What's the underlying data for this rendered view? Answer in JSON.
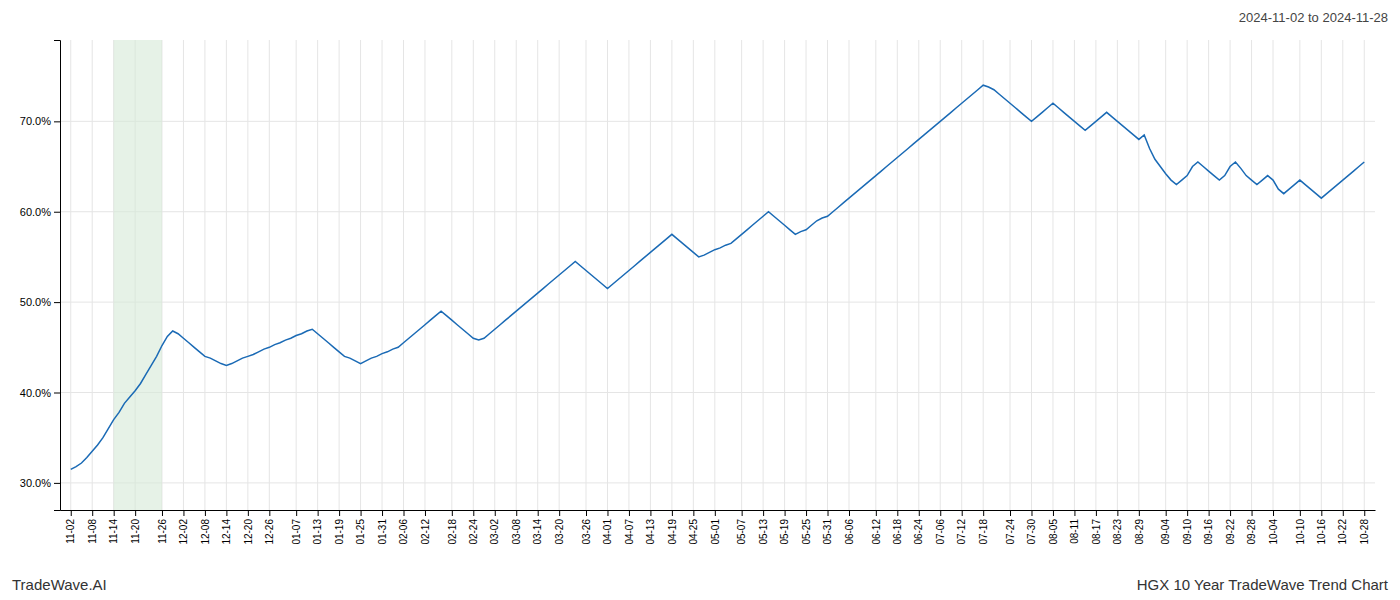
{
  "chart_data": {
    "type": "line",
    "title": "HGX 10 Year TradeWave Trend Chart",
    "subtitle": "2024-11-02 to 2024-11-28",
    "annotations": [
      "TradeWave.AI"
    ],
    "color": "#1a6ab5",
    "grid": true,
    "ylim": [
      27.0,
      79.0
    ],
    "yticks": [
      {
        "value": 30.0,
        "label": "30.0%"
      },
      {
        "value": 40.0,
        "label": "40.0%"
      },
      {
        "value": 50.0,
        "label": "50.0%"
      },
      {
        "value": 60.0,
        "label": "60.0%"
      },
      {
        "value": 70.0,
        "label": "70.0%"
      }
    ],
    "shade": {
      "start": "11-14",
      "end": "11-26",
      "color": "#d6ead7"
    },
    "categories": [
      "11-02",
      null,
      null,
      null,
      "11-08",
      null,
      null,
      null,
      "11-14",
      null,
      null,
      null,
      "11-20",
      null,
      null,
      null,
      null,
      "11-26",
      null,
      null,
      null,
      "12-02",
      null,
      null,
      null,
      "12-08",
      null,
      null,
      null,
      "12-14",
      null,
      null,
      null,
      "12-20",
      null,
      null,
      null,
      "12-26",
      null,
      null,
      null,
      null,
      "01-07",
      null,
      null,
      null,
      "01-13",
      null,
      null,
      null,
      "01-19",
      null,
      null,
      null,
      "01-25",
      null,
      null,
      null,
      "01-31",
      null,
      null,
      null,
      "02-06",
      null,
      null,
      null,
      "02-12",
      null,
      null,
      null,
      null,
      "02-18",
      null,
      null,
      null,
      "02-24",
      null,
      null,
      null,
      "03-02",
      null,
      null,
      null,
      "03-08",
      null,
      null,
      null,
      "03-14",
      null,
      null,
      null,
      "03-20",
      null,
      null,
      null,
      null,
      "03-26",
      null,
      null,
      null,
      "04-01",
      null,
      null,
      null,
      "04-07",
      null,
      null,
      null,
      "04-13",
      null,
      null,
      null,
      "04-19",
      null,
      null,
      null,
      "04-25",
      null,
      null,
      null,
      "05-01",
      null,
      null,
      null,
      null,
      "05-07",
      null,
      null,
      null,
      "05-13",
      null,
      null,
      null,
      "05-19",
      null,
      null,
      null,
      "05-25",
      null,
      null,
      null,
      "05-31",
      null,
      null,
      null,
      "06-06",
      null,
      null,
      null,
      null,
      "06-12",
      null,
      null,
      null,
      "06-18",
      null,
      null,
      null,
      "06-24",
      null,
      null,
      null,
      "07-06",
      null,
      null,
      null,
      "07-12",
      null,
      null,
      null,
      "07-18",
      null,
      null,
      null,
      null,
      "07-24",
      null,
      null,
      null,
      "07-30",
      null,
      null,
      null,
      "08-05",
      null,
      null,
      null,
      "08-11",
      null,
      null,
      null,
      "08-17",
      null,
      null,
      null,
      "08-23",
      null,
      null,
      null,
      "08-29",
      null,
      null,
      null,
      null,
      "09-04",
      null,
      null,
      null,
      "09-10",
      null,
      null,
      null,
      "09-16",
      null,
      null,
      null,
      "09-22",
      null,
      null,
      null,
      "09-28",
      null,
      null,
      null,
      "10-04",
      null,
      null,
      null,
      null,
      "10-10",
      null,
      null,
      null,
      "10-16",
      null,
      null,
      null,
      "10-22",
      null,
      null,
      null,
      "10-28"
    ],
    "values": [
      31.5,
      31.8,
      32.2,
      32.8,
      33.5,
      34.2,
      35.0,
      36.0,
      37.0,
      37.8,
      38.8,
      39.5,
      40.2,
      41.0,
      42.0,
      43.0,
      44.0,
      45.2,
      46.2,
      46.8,
      46.5,
      46.0,
      45.5,
      45.0,
      44.5,
      44.0,
      43.8,
      43.5,
      43.2,
      43.0,
      43.2,
      43.5,
      43.8,
      44.0,
      44.2,
      44.5,
      44.8,
      45.0,
      45.3,
      45.5,
      45.8,
      46.0,
      46.3,
      46.5,
      46.8,
      47.0,
      46.5,
      46.0,
      45.5,
      45.0,
      44.5,
      44.0,
      43.8,
      43.5,
      43.2,
      43.5,
      43.8,
      44.0,
      44.3,
      44.5,
      44.8,
      45.0,
      45.5,
      46.0,
      46.5,
      47.0,
      47.5,
      48.0,
      48.5,
      49.0,
      48.5,
      48.0,
      47.5,
      47.0,
      46.5,
      46.0,
      45.8,
      46.0,
      46.5,
      47.0,
      47.5,
      48.0,
      48.5,
      49.0,
      49.5,
      50.0,
      50.5,
      51.0,
      51.5,
      52.0,
      52.5,
      53.0,
      53.5,
      54.0,
      54.5,
      54.0,
      53.5,
      53.0,
      52.5,
      52.0,
      51.5,
      52.0,
      52.5,
      53.0,
      53.5,
      54.0,
      54.5,
      55.0,
      55.5,
      56.0,
      56.5,
      57.0,
      57.5,
      57.0,
      56.5,
      56.0,
      55.5,
      55.0,
      55.2,
      55.5,
      55.8,
      56.0,
      56.3,
      56.5,
      57.0,
      57.5,
      58.0,
      58.5,
      59.0,
      59.5,
      60.0,
      59.5,
      59.0,
      58.5,
      58.0,
      57.5,
      57.8,
      58.0,
      58.5,
      59.0,
      59.3,
      59.5,
      60.0,
      60.5,
      61.0,
      61.5,
      62.0,
      62.5,
      63.0,
      63.5,
      64.0,
      64.5,
      65.0,
      65.5,
      66.0,
      66.5,
      67.0,
      67.5,
      68.0,
      68.5,
      69.0,
      69.5,
      70.0,
      70.5,
      71.0,
      71.5,
      72.0,
      72.5,
      73.0,
      73.5,
      74.0,
      73.8,
      73.5,
      73.0,
      72.5,
      72.0,
      71.5,
      71.0,
      70.5,
      70.0,
      70.5,
      71.0,
      71.5,
      72.0,
      71.5,
      71.0,
      70.5,
      70.0,
      69.5,
      69.0,
      69.5,
      70.0,
      70.5,
      71.0,
      70.5,
      70.0,
      69.5,
      69.0,
      68.5,
      68.0,
      68.5,
      67.0,
      65.8,
      65.0,
      64.2,
      63.5,
      63.0,
      63.5,
      64.0,
      65.0,
      65.5,
      65.0,
      64.5,
      64.0,
      63.5,
      64.0,
      65.0,
      65.5,
      64.8,
      64.0,
      63.5,
      63.0,
      63.5,
      64.0,
      63.5,
      62.5,
      62.0,
      62.5,
      63.0,
      63.5,
      63.0,
      62.5,
      62.0,
      61.5,
      62.0,
      62.5,
      63.0,
      63.5,
      64.0,
      64.5,
      65.0,
      65.5
    ]
  }
}
